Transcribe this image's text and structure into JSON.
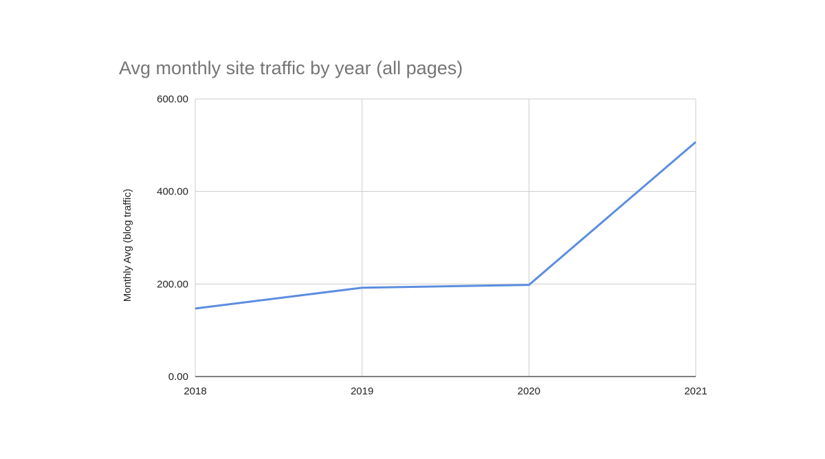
{
  "chart_data": {
    "type": "line",
    "title": "Avg monthly site traffic by year (all pages)",
    "y_label": "Monthly Avg (blog traffic)",
    "x": [
      2018,
      2019,
      2020,
      2021
    ],
    "series": [
      {
        "name": "Monthly Avg (blog traffic)",
        "color": "#5b8de0",
        "values": [
          147,
          192,
          198,
          507
        ]
      }
    ],
    "xlim": [
      2018,
      2021
    ],
    "xticks": [
      2018,
      2019,
      2020,
      2021
    ],
    "ylim": [
      0,
      600
    ],
    "yticks": [
      {
        "value": 0,
        "label": "0.00"
      },
      {
        "value": 200,
        "label": "200.00"
      },
      {
        "value": 400,
        "label": "400.00"
      },
      {
        "value": 600,
        "label": "600.00"
      }
    ],
    "grid": true
  }
}
